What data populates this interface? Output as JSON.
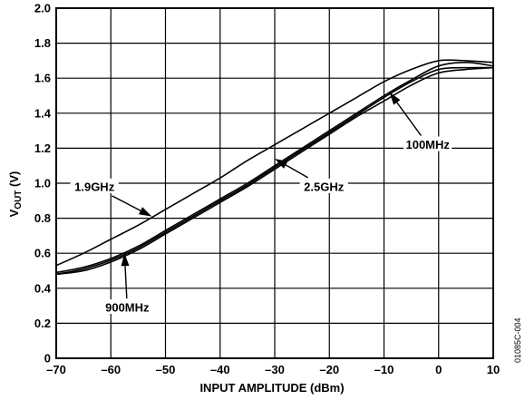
{
  "chart_data": {
    "type": "line",
    "xlabel": "INPUT AMPLITUDE (dBm)",
    "ylabel": {
      "main": "V",
      "sub": "OUT",
      "unit": " (V)"
    },
    "xlim": [
      -70,
      10
    ],
    "ylim": [
      0,
      2.0
    ],
    "xticks": [
      -70,
      -60,
      -50,
      -40,
      -30,
      -20,
      -10,
      0,
      10
    ],
    "xtick_labels": [
      "–70",
      "–60",
      "–50",
      "–40",
      "–30",
      "–20",
      "–10",
      "0",
      "10"
    ],
    "yticks": [
      0,
      0.2,
      0.4,
      0.6,
      0.8,
      1.0,
      1.2,
      1.4,
      1.6,
      1.8,
      2.0
    ],
    "ytick_labels": [
      "0",
      "0.2",
      "0.4",
      "0.6",
      "0.8",
      "1.0",
      "1.2",
      "1.4",
      "1.6",
      "1.8",
      "2.0"
    ],
    "grid": true,
    "series": [
      {
        "name": "1.9GHz",
        "x": [
          -70,
          -65,
          -60,
          -55,
          -50,
          -45,
          -40,
          -35,
          -30,
          -25,
          -20,
          -15,
          -10,
          -5,
          0,
          5,
          10
        ],
        "y": [
          0.53,
          0.6,
          0.68,
          0.76,
          0.85,
          0.94,
          1.03,
          1.13,
          1.22,
          1.31,
          1.4,
          1.49,
          1.58,
          1.65,
          1.7,
          1.7,
          1.69
        ]
      },
      {
        "name": "2.5GHz",
        "x": [
          -70,
          -65,
          -60,
          -55,
          -50,
          -45,
          -40,
          -35,
          -30,
          -25,
          -20,
          -15,
          -10,
          -5,
          0,
          5,
          10
        ],
        "y": [
          0.49,
          0.52,
          0.57,
          0.64,
          0.73,
          0.82,
          0.91,
          1.0,
          1.1,
          1.2,
          1.3,
          1.4,
          1.5,
          1.59,
          1.67,
          1.69,
          1.67
        ]
      },
      {
        "name": "900MHz",
        "x": [
          -70,
          -65,
          -60,
          -55,
          -50,
          -45,
          -40,
          -35,
          -30,
          -25,
          -20,
          -15,
          -10,
          -5,
          0,
          5,
          10
        ],
        "y": [
          0.48,
          0.5,
          0.55,
          0.62,
          0.71,
          0.8,
          0.89,
          0.98,
          1.08,
          1.18,
          1.28,
          1.38,
          1.47,
          1.56,
          1.63,
          1.65,
          1.66
        ]
      },
      {
        "name": "100MHz",
        "x": [
          -70,
          -65,
          -60,
          -55,
          -50,
          -45,
          -40,
          -35,
          -30,
          -25,
          -20,
          -15,
          -10,
          -5,
          0,
          5,
          10
        ],
        "y": [
          0.48,
          0.51,
          0.56,
          0.63,
          0.72,
          0.81,
          0.9,
          0.99,
          1.09,
          1.19,
          1.29,
          1.39,
          1.49,
          1.58,
          1.65,
          1.66,
          1.66
        ]
      }
    ],
    "annotations": [
      {
        "text": "1.9GHz",
        "x": -63,
        "y": 0.98,
        "arrow_to": [
          -52.5,
          0.81
        ]
      },
      {
        "text": "2.5GHz",
        "x": -21,
        "y": 0.98,
        "arrow_to": [
          -30,
          1.14
        ]
      },
      {
        "text": "900MHz",
        "x": -57,
        "y": 0.29,
        "arrow_to": [
          -57.5,
          0.6
        ]
      },
      {
        "text": "100MHz",
        "x": -2,
        "y": 1.22,
        "arrow_to": [
          -9,
          1.52
        ]
      }
    ],
    "figure_code": "01085C-004"
  }
}
